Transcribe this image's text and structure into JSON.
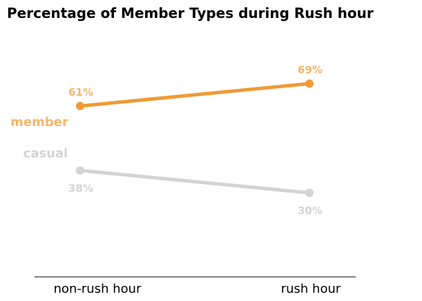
{
  "chart_data": {
    "type": "line",
    "title": "Percentage of Member Types during Rush hour",
    "categories": [
      "non-rush hour",
      "rush hour"
    ],
    "ylim": [
      0,
      90
    ],
    "grid": false,
    "series": [
      {
        "name": "member",
        "values": [
          61,
          69
        ],
        "labels": [
          "61%",
          "69%"
        ],
        "line_color": "#ef9a35",
        "label_color": "#f3b66a"
      },
      {
        "name": "casual",
        "values": [
          38,
          30
        ],
        "labels": [
          "38%",
          "30%"
        ],
        "line_color": "#d3d3d3",
        "label_color": "#d3d3d3"
      }
    ]
  }
}
